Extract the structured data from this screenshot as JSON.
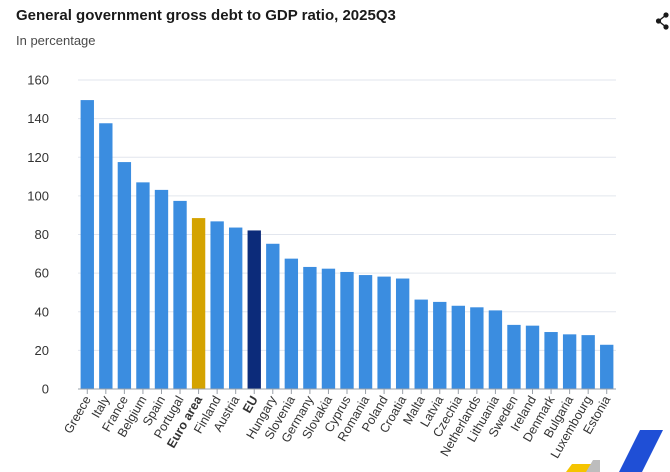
{
  "header": {
    "title": "General government gross debt to GDP ratio, 2025Q3",
    "subtitle": "In percentage"
  },
  "icons": {
    "share": "share-icon",
    "logo": "eurostat-logo"
  },
  "colors": {
    "default_bar": "#3b8de0",
    "euro_area_bar": "#d4a300",
    "eu_bar": "#0c2b7a",
    "gridline": "#e2e6ee",
    "axis": "#9aa0a8"
  },
  "chart_data": {
    "type": "bar",
    "title": "General government gross debt to GDP ratio, 2025Q3",
    "subtitle": "In percentage",
    "xlabel": "",
    "ylabel": "",
    "ylim": [
      0,
      160
    ],
    "yticks": [
      0,
      20,
      40,
      60,
      80,
      100,
      120,
      140,
      160
    ],
    "grid": true,
    "highlighted": {
      "Euro area": "euro_area_bar",
      "EU": "eu_bar"
    },
    "bold_labels": [
      "Euro area",
      "EU"
    ],
    "categories": [
      "Greece",
      "Italy",
      "France",
      "Belgium",
      "Spain",
      "Portugal",
      "Euro area",
      "Finland",
      "Austria",
      "EU",
      "Hungary",
      "Slovenia",
      "Germany",
      "Slovakia",
      "Cyprus",
      "Romania",
      "Poland",
      "Croatia",
      "Malta",
      "Latvia",
      "Czechia",
      "Netherlands",
      "Lithuania",
      "Sweden",
      "Ireland",
      "Denmark",
      "Bulgaria",
      "Luxembourg",
      "Estonia"
    ],
    "values": [
      149.6,
      137.6,
      117.5,
      107.0,
      103.1,
      97.4,
      88.5,
      86.8,
      83.6,
      82.1,
      75.2,
      67.5,
      63.2,
      62.3,
      60.6,
      59.0,
      58.2,
      57.2,
      46.3,
      45.1,
      43.1,
      42.3,
      40.7,
      33.2,
      32.8,
      29.5,
      28.3,
      27.9,
      22.9
    ]
  }
}
